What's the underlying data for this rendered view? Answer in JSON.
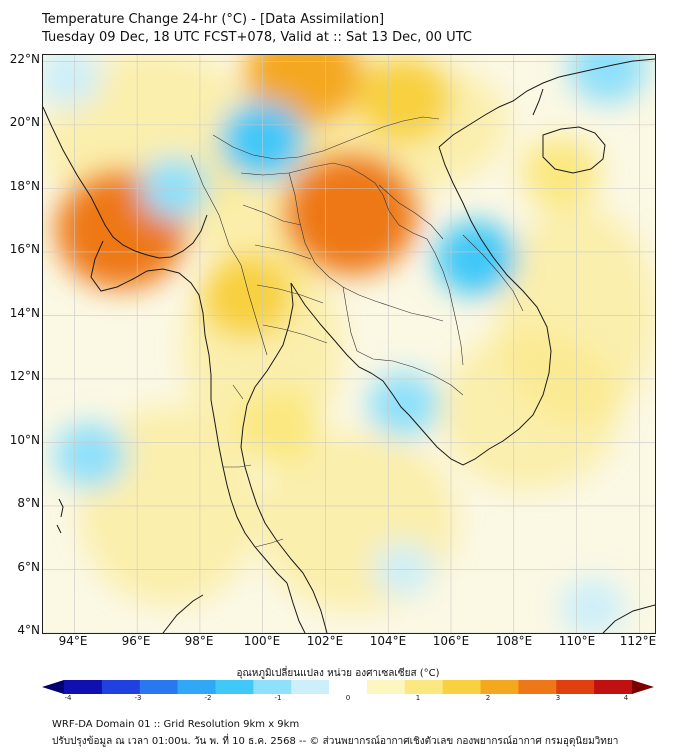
{
  "title_line1": "Temperature Change 24-hr (°C) - [Data Assimilation]",
  "title_line2": "Tuesday 09 Dec, 18 UTC FCST+078, Valid at :: Sat 13 Dec, 00 UTC",
  "lat_labels": [
    "22°N",
    "20°N",
    "18°N",
    "16°N",
    "14°N",
    "12°N",
    "10°N",
    "8°N",
    "6°N",
    "4°N"
  ],
  "lon_labels": [
    "94°E",
    "96°E",
    "98°E",
    "100°E",
    "102°E",
    "104°E",
    "106°E",
    "108°E",
    "110°E",
    "112°E"
  ],
  "colorbar": {
    "title": "อุณหภูมิเปลี่ยนแปลง หน่วย องศาเซลเซียส (°C)",
    "ticks": [
      "-4",
      "-3",
      "-2",
      "-1",
      "0",
      "1",
      "2",
      "3",
      "4"
    ],
    "colors": [
      "#00006e",
      "#1010b0",
      "#2040e0",
      "#2a78f0",
      "#30a8f5",
      "#40c8f8",
      "#8ee0fb",
      "#cdeffa",
      "#ffffff",
      "#fdf6c0",
      "#fbe880",
      "#f8d040",
      "#f4a820",
      "#ee7818",
      "#e04010",
      "#c01010",
      "#7a0000"
    ]
  },
  "footer_line1": "WRF-DA Domain 01 :: Grid Resolution 9km x 9km",
  "footer_line2": "ปรับปรุงข้อมูล ณ เวลา 01:00น. วัน พ. ที่ 10 ธ.ค. 2568 -- © ส่วนพยากรณ์อากาศเชิงตัวเลข กองพยากรณ์อากาศ กรมอุตุนิยมวิทยา",
  "map_extent": {
    "lon_min": 93,
    "lon_max": 112.5,
    "lat_min": 4,
    "lat_max": 22.2
  },
  "anomaly_regions": [
    {
      "feature": "warm",
      "lon": 95.5,
      "lat": 16.7,
      "value": 2.6
    },
    {
      "feature": "warm",
      "lon": 102.8,
      "lat": 17.2,
      "value": 2.7
    },
    {
      "feature": "warm",
      "lon": 101.3,
      "lat": 21.6,
      "value": 2.2
    },
    {
      "feature": "warm",
      "lon": 104.5,
      "lat": 20.8,
      "value": 1.5
    },
    {
      "feature": "warm",
      "lon": 99.5,
      "lat": 14.6,
      "value": 1.4
    },
    {
      "feature": "warm",
      "lon": 100.5,
      "lat": 10.5,
      "value": 1.2
    },
    {
      "feature": "warm",
      "lon": 109.5,
      "lat": 18.5,
      "value": 1.1
    },
    {
      "feature": "cool",
      "lon": 100.0,
      "lat": 19.5,
      "value": -1.3
    },
    {
      "feature": "cool",
      "lon": 106.8,
      "lat": 15.8,
      "value": -1.2
    },
    {
      "feature": "cool",
      "lon": 111.0,
      "lat": 21.8,
      "value": -1.1
    },
    {
      "feature": "cool",
      "lon": 104.5,
      "lat": 11.2,
      "value": -0.9
    },
    {
      "feature": "cool",
      "lon": 94.5,
      "lat": 9.6,
      "value": -0.9
    },
    {
      "feature": "cool",
      "lon": 97.2,
      "lat": 18.0,
      "value": -0.8
    },
    {
      "feature": "cool",
      "lon": 93.8,
      "lat": 21.5,
      "value": -0.7
    },
    {
      "feature": "cool",
      "lon": 110.5,
      "lat": 4.8,
      "value": -0.7
    },
    {
      "feature": "cool",
      "lon": 104.5,
      "lat": 6.0,
      "value": -0.5
    }
  ]
}
